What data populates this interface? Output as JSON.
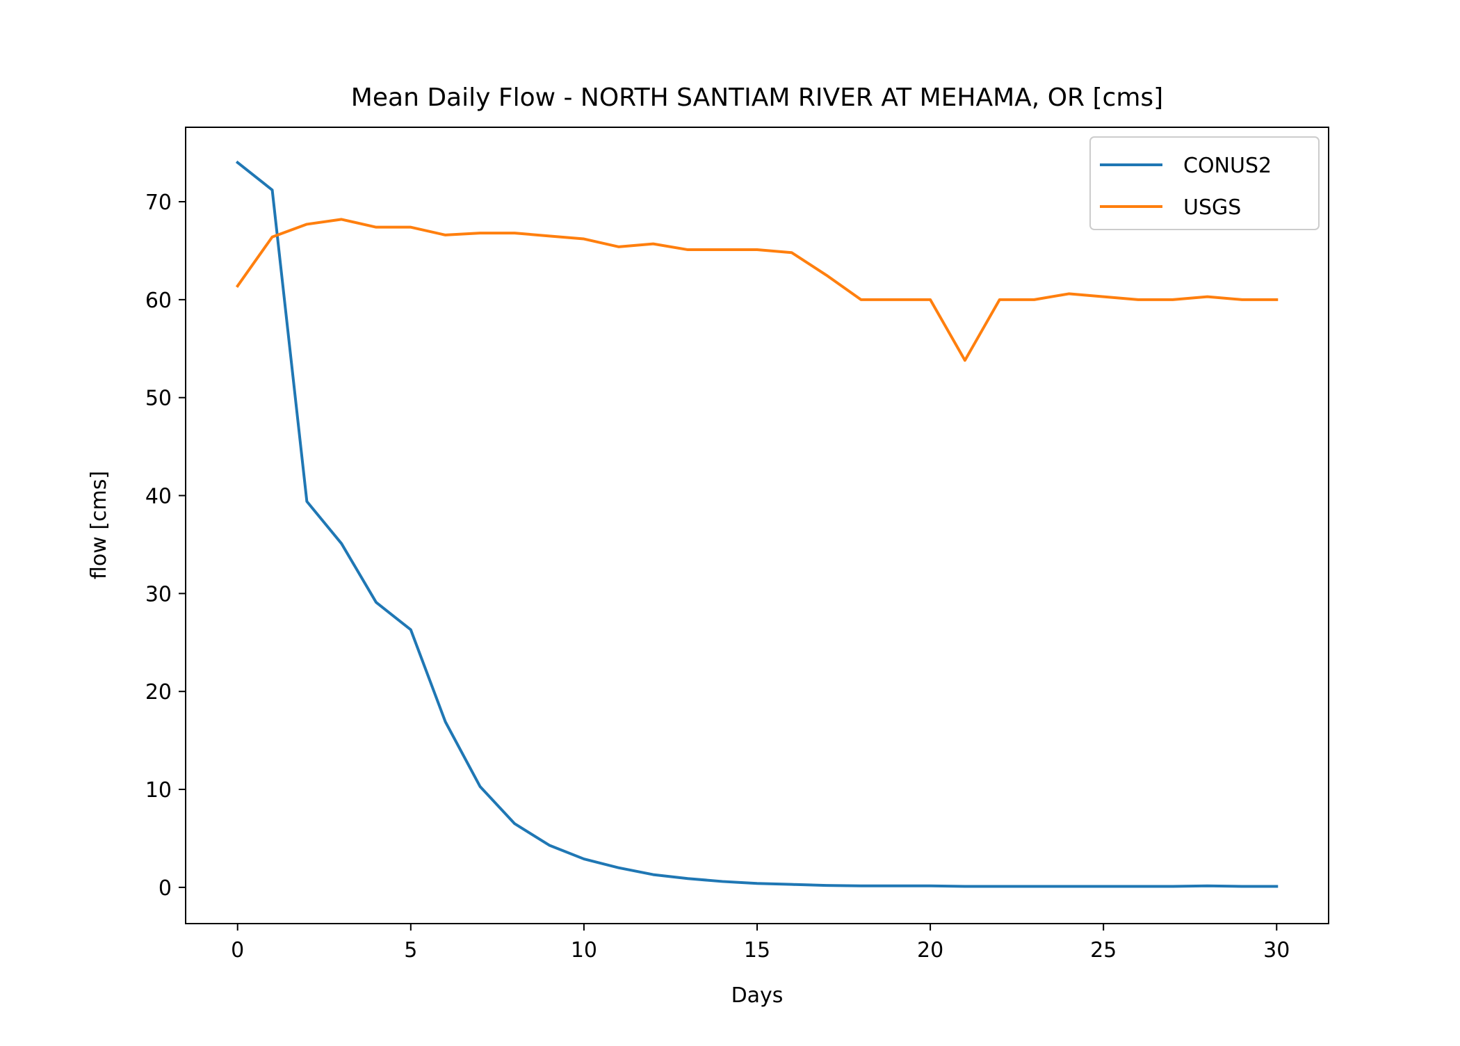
{
  "chart_data": {
    "type": "line",
    "title": "Mean Daily Flow - NORTH SANTIAM RIVER AT MEHAMA, OR [cms]",
    "xlabel": "Days",
    "ylabel": "flow [cms]",
    "xlim": [
      -1.5,
      31.5
    ],
    "ylim": [
      -3.7,
      77.6
    ],
    "xticks": [
      0,
      5,
      10,
      15,
      20,
      25,
      30
    ],
    "yticks": [
      0,
      10,
      20,
      30,
      40,
      50,
      60,
      70
    ],
    "grid": false,
    "legend_position": "top-right",
    "x": [
      0,
      1,
      2,
      3,
      4,
      5,
      6,
      7,
      8,
      9,
      10,
      11,
      12,
      13,
      14,
      15,
      16,
      17,
      18,
      19,
      20,
      21,
      22,
      23,
      24,
      25,
      26,
      27,
      28,
      29,
      30
    ],
    "series": [
      {
        "name": "CONUS2",
        "color": "#1f77b4",
        "values": [
          74.0,
          71.2,
          39.4,
          35.1,
          29.1,
          26.3,
          16.9,
          10.3,
          6.5,
          4.3,
          2.9,
          2.0,
          1.3,
          0.9,
          0.6,
          0.4,
          0.3,
          0.2,
          0.15,
          0.15,
          0.15,
          0.1,
          0.1,
          0.1,
          0.1,
          0.1,
          0.1,
          0.1,
          0.15,
          0.1,
          0.1
        ]
      },
      {
        "name": "USGS",
        "color": "#ff7f0e",
        "values": [
          61.4,
          66.4,
          67.7,
          68.2,
          67.4,
          67.4,
          66.6,
          66.8,
          66.8,
          66.5,
          66.2,
          65.4,
          65.7,
          65.1,
          65.1,
          65.1,
          64.8,
          62.5,
          60.0,
          60.0,
          60.0,
          53.8,
          60.0,
          60.0,
          60.6,
          60.3,
          60.0,
          60.0,
          60.3,
          60.0,
          60.0
        ]
      }
    ]
  }
}
